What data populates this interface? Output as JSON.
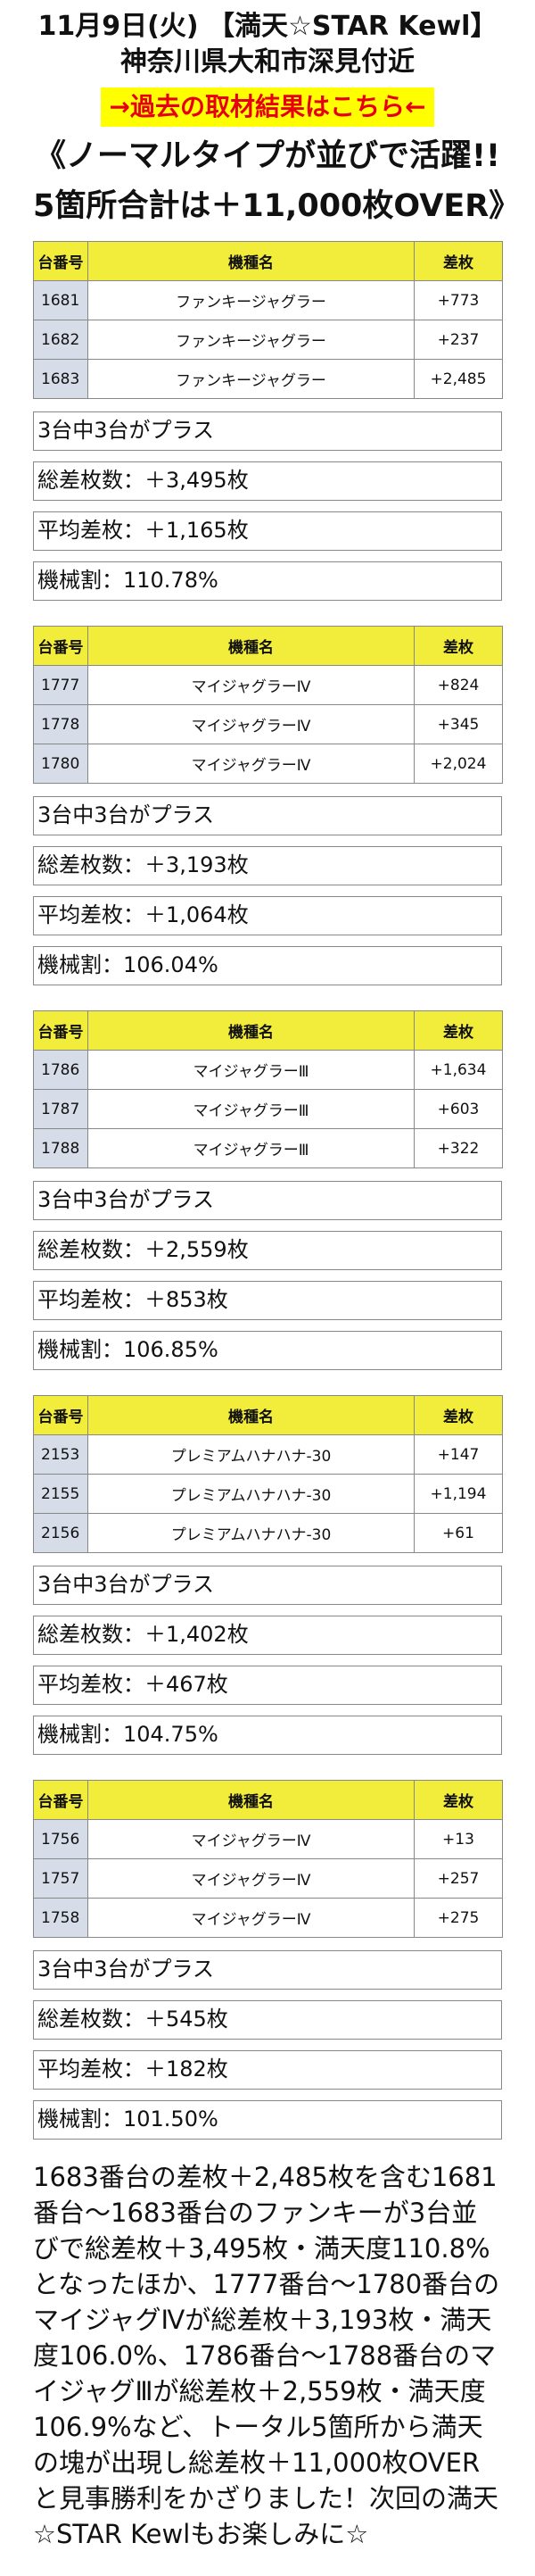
{
  "header": {
    "date_shop": "11月9日(火) 【満天☆STAR Kewl】",
    "location": "神奈川県大和市深見付近"
  },
  "past_link_label": "→過去の取材結果はこちら←",
  "headline": {
    "line1": "《ノーマルタイプが並びで活躍!!",
    "line2": "5箇所合計は＋11,000枚OVER》"
  },
  "table_headers": {
    "number": "台番号",
    "machine": "機種名",
    "diff": "差枚"
  },
  "sections": [
    {
      "rows": [
        {
          "number": "1681",
          "machine": "ファンキージャグラー",
          "diff": "+773"
        },
        {
          "number": "1682",
          "machine": "ファンキージャグラー",
          "diff": "+237"
        },
        {
          "number": "1683",
          "machine": "ファンキージャグラー",
          "diff": "+2,485"
        }
      ],
      "summary": [
        "3台中3台がプラス",
        "総差枚数：＋3,495枚",
        "平均差枚：＋1,165枚",
        "機械割：110.78%"
      ]
    },
    {
      "rows": [
        {
          "number": "1777",
          "machine": "マイジャグラーⅣ",
          "diff": "+824"
        },
        {
          "number": "1778",
          "machine": "マイジャグラーⅣ",
          "diff": "+345"
        },
        {
          "number": "1780",
          "machine": "マイジャグラーⅣ",
          "diff": "+2,024"
        }
      ],
      "summary": [
        "3台中3台がプラス",
        "総差枚数：＋3,193枚",
        "平均差枚：＋1,064枚",
        "機械割：106.04%"
      ]
    },
    {
      "rows": [
        {
          "number": "1786",
          "machine": "マイジャグラーⅢ",
          "diff": "+1,634"
        },
        {
          "number": "1787",
          "machine": "マイジャグラーⅢ",
          "diff": "+603"
        },
        {
          "number": "1788",
          "machine": "マイジャグラーⅢ",
          "diff": "+322"
        }
      ],
      "summary": [
        "3台中3台がプラス",
        "総差枚数：＋2,559枚",
        "平均差枚：＋853枚",
        "機械割：106.85%"
      ]
    },
    {
      "rows": [
        {
          "number": "2153",
          "machine": "プレミアムハナハナ-30",
          "diff": "+147"
        },
        {
          "number": "2155",
          "machine": "プレミアムハナハナ-30",
          "diff": "+1,194"
        },
        {
          "number": "2156",
          "machine": "プレミアムハナハナ-30",
          "diff": "+61"
        }
      ],
      "summary": [
        "3台中3台がプラス",
        "総差枚数：＋1,402枚",
        "平均差枚：＋467枚",
        "機械割：104.75%"
      ]
    },
    {
      "rows": [
        {
          "number": "1756",
          "machine": "マイジャグラーⅣ",
          "diff": "+13"
        },
        {
          "number": "1757",
          "machine": "マイジャグラーⅣ",
          "diff": "+257"
        },
        {
          "number": "1758",
          "machine": "マイジャグラーⅣ",
          "diff": "+275"
        }
      ],
      "summary": [
        "3台中3台がプラス",
        "総差枚数：＋545枚",
        "平均差枚：＋182枚",
        "機械割：101.50%"
      ]
    }
  ],
  "closing_text": "1683番台の差枚＋2,485枚を含む1681番台～1683番台のファンキーが3台並びで総差枚＋3,495枚・満天度110.8%となったほか、1777番台～1780番台のマイジャグⅣが総差枚＋3,193枚・満天度106.0%、1786番台～1788番台のマイジャグⅢが総差枚＋2,559枚・満天度106.9%など、トータル5箇所から満天の塊が出現し総差枚＋11,000枚OVERと見事勝利をかざりました！次回の満天☆STAR Kewlもお楽しみに☆",
  "colors": {
    "table_header_bg": "#f2ec3a",
    "number_cell_bg": "#d7dce9",
    "link_bg": "#ffff00",
    "link_text": "#e60012"
  }
}
